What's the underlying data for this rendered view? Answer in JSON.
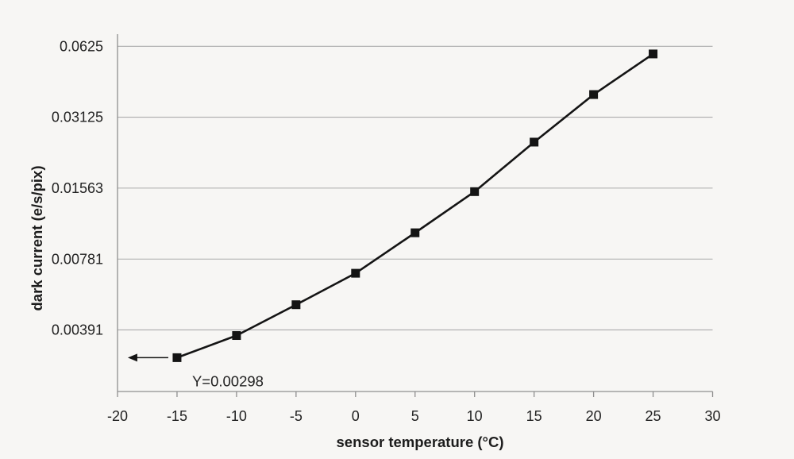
{
  "figure": {
    "background": "#f7f6f4",
    "text_color": "#1d1d1d"
  },
  "chart_data": {
    "type": "line",
    "title": "",
    "xlabel": "sensor temperature (°C)",
    "ylabel": "dark current (e/s/pix)",
    "series": [
      {
        "name": "dark current",
        "x": [
          -15,
          -10,
          -5,
          0,
          5,
          10,
          15,
          20,
          25
        ],
        "y": [
          0.00298,
          0.0037,
          0.005,
          0.0068,
          0.0101,
          0.0151,
          0.0245,
          0.039,
          0.058
        ],
        "marker": "filled-square",
        "color": "#141414"
      }
    ],
    "xlim": [
      -20,
      30
    ],
    "x_ticks": [
      {
        "label": "-20",
        "value": -20
      },
      {
        "label": "-15",
        "value": -15
      },
      {
        "label": "-10",
        "value": -10
      },
      {
        "label": "-5",
        "value": -5
      },
      {
        "label": "0",
        "value": 0
      },
      {
        "label": "5",
        "value": 5
      },
      {
        "label": "10",
        "value": 10
      },
      {
        "label": "15",
        "value": 15
      },
      {
        "label": "20",
        "value": 20
      },
      {
        "label": "25",
        "value": 25
      },
      {
        "label": "30",
        "value": 30
      }
    ],
    "y_scale": "log2",
    "y_ticks": [
      {
        "label": "0.0625",
        "value": 0.0625
      },
      {
        "label": "0.03125",
        "value": 0.03125
      },
      {
        "label": "0.01563",
        "value": 0.01563
      },
      {
        "label": "0.00781",
        "value": 0.00781
      },
      {
        "label": "0.00391",
        "value": 0.00391
      }
    ],
    "grid": "horizontal",
    "grid_color": "#ababab",
    "axis_color": "#8f8f8f",
    "legend": "none",
    "annotation": {
      "text": "Y=0.00298",
      "attach_x": -15,
      "attach_y": 0.00298,
      "arrow_direction": "left"
    }
  }
}
